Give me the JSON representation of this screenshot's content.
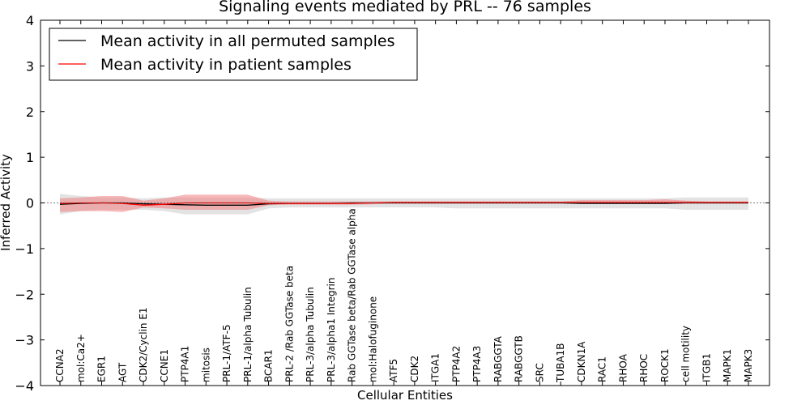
{
  "chart_data": {
    "type": "line",
    "title": "Signaling events mediated by PRL -- 76 samples",
    "xlabel": "Cellular Entities",
    "ylabel": "Inferred Activity",
    "ylim": [
      -4,
      4
    ],
    "yticks": [
      -4,
      -3,
      -2,
      -1,
      0,
      1,
      2,
      3,
      4
    ],
    "ytick_labels": [
      "−4",
      "−3",
      "−2",
      "−1",
      "0",
      "1",
      "2",
      "3",
      "4"
    ],
    "grid": false,
    "legend_position": "top-left",
    "categories": [
      "CCNA2",
      "mol:Ca2+",
      "EGR1",
      "AGT",
      "CDK2/Cyclin E1",
      "CCNE1",
      "PTP4A1",
      "mitosis",
      "PRL-1/ATF-5",
      "PRL-1/alpha Tubulin",
      "BCAR1",
      "PRL-2 /Rab GGTase beta",
      "PRL-3/alpha Tubulin",
      "PRL-3/alpha1 Integrin",
      "Rab GGTase beta/Rab GGTase alpha",
      "mol:Halofuginone",
      "ATF5",
      "CDK2",
      "ITGA1",
      "PTP4A2",
      "PTP4A3",
      "RABGGTA",
      "RABGGTB",
      "SRC",
      "TUBA1B",
      "CDKN1A",
      "RAC1",
      "RHOA",
      "RHOC",
      "ROCK1",
      "cell motility",
      "ITGB1",
      "MAPK1",
      "MAPK3"
    ],
    "series": [
      {
        "name": "Mean activity in all permuted samples",
        "color": "#000000",
        "values": [
          -0.03,
          -0.01,
          0.0,
          0.0,
          -0.02,
          -0.03,
          -0.04,
          -0.05,
          -0.05,
          -0.05,
          -0.02,
          -0.01,
          -0.01,
          -0.01,
          0.0,
          0.0,
          0.0,
          0.0,
          0.0,
          0.0,
          0.0,
          0.0,
          0.0,
          0.0,
          0.0,
          -0.01,
          -0.01,
          -0.01,
          -0.01,
          -0.01,
          0.0,
          0.0,
          0.0,
          0.0
        ],
        "band_upper": [
          0.2,
          0.15,
          0.12,
          0.12,
          0.1,
          0.12,
          0.12,
          0.12,
          0.12,
          0.12,
          0.1,
          0.1,
          0.1,
          0.1,
          0.1,
          0.1,
          0.1,
          0.1,
          0.1,
          0.1,
          0.1,
          0.1,
          0.1,
          0.1,
          0.1,
          0.1,
          0.1,
          0.1,
          0.1,
          0.1,
          0.12,
          0.12,
          0.12,
          0.12
        ],
        "band_lower": [
          -0.25,
          -0.18,
          -0.15,
          -0.15,
          -0.15,
          -0.18,
          -0.25,
          -0.25,
          -0.25,
          -0.25,
          -0.12,
          -0.1,
          -0.1,
          -0.1,
          -0.1,
          -0.1,
          -0.1,
          -0.1,
          -0.1,
          -0.12,
          -0.12,
          -0.12,
          -0.12,
          -0.12,
          -0.12,
          -0.12,
          -0.12,
          -0.12,
          -0.12,
          -0.12,
          -0.15,
          -0.15,
          -0.15,
          -0.15
        ],
        "band_color": "#c8c8c8"
      },
      {
        "name": "Mean activity in patient samples",
        "color": "#ff0000",
        "values": [
          -0.01,
          0.0,
          0.0,
          -0.01,
          -0.05,
          -0.03,
          0.0,
          0.0,
          0.0,
          0.0,
          -0.01,
          -0.01,
          -0.01,
          -0.01,
          -0.01,
          0.0,
          0.01,
          0.01,
          0.01,
          0.01,
          0.01,
          0.01,
          0.01,
          0.01,
          0.01,
          0.01,
          0.01,
          0.01,
          0.01,
          0.01,
          0.01,
          0.01,
          0.01,
          0.01
        ],
        "band_upper": [
          0.1,
          0.12,
          0.15,
          0.15,
          0.05,
          0.1,
          0.18,
          0.18,
          0.18,
          0.18,
          0.05,
          0.03,
          0.03,
          0.03,
          0.03,
          0.03,
          0.03,
          0.03,
          0.03,
          0.03,
          0.03,
          0.03,
          0.03,
          0.03,
          0.03,
          0.06,
          0.06,
          0.06,
          0.06,
          0.08,
          0.05,
          0.03,
          0.03,
          0.03
        ],
        "band_lower": [
          -0.2,
          -0.18,
          -0.18,
          -0.2,
          -0.1,
          -0.12,
          -0.15,
          -0.15,
          -0.15,
          -0.15,
          -0.05,
          -0.04,
          -0.04,
          -0.04,
          -0.04,
          -0.03,
          -0.02,
          -0.02,
          -0.02,
          -0.02,
          -0.02,
          -0.02,
          -0.02,
          -0.02,
          -0.02,
          -0.02,
          -0.02,
          -0.02,
          -0.02,
          -0.02,
          -0.02,
          -0.02,
          -0.02,
          -0.02
        ],
        "band_color": "#f08080"
      }
    ]
  }
}
